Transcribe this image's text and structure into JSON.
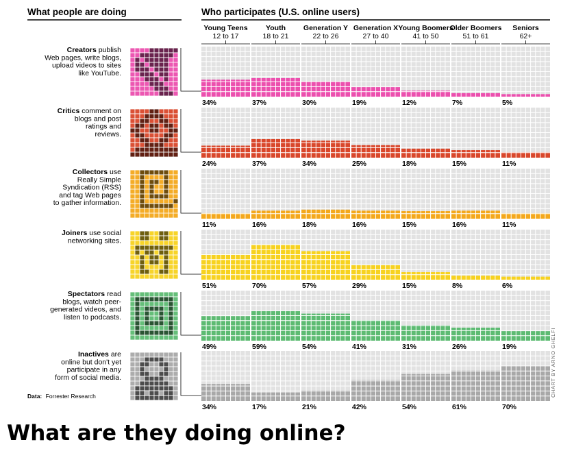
{
  "page_title": "What are they doing online?",
  "left_header": "What people are doing",
  "right_header": "Who participates (U.S. online users)",
  "source_label": "Data:",
  "source_text": "Forrester Research",
  "credit": "CHART BY ARNO GHELFI",
  "colors": {
    "creators": "#ec4fae",
    "critics": "#d9472b",
    "collectors": "#f4a81c",
    "joiners": "#f7d21f",
    "spectators": "#5dbb72",
    "inactives": "#a8a8a8",
    "empty_cell": "#e2e2e2",
    "grid_line": "#ffffff"
  },
  "chart_data": {
    "type": "bar",
    "unit": "%",
    "ylim": [
      0,
      100
    ],
    "categories": [
      {
        "name": "Young Teens",
        "ages": "12 to 17"
      },
      {
        "name": "Youth",
        "ages": "18 to 21"
      },
      {
        "name": "Generation Y",
        "ages": "22 to 26"
      },
      {
        "name": "Generation X",
        "ages": "27 to 40"
      },
      {
        "name": "Young Boomers",
        "ages": "41 to 50"
      },
      {
        "name": "Older Boomers",
        "ages": "51 to 61"
      },
      {
        "name": "Seniors",
        "ages": "62+"
      }
    ],
    "series": [
      {
        "key": "creators",
        "name": "Creators",
        "description_lines": [
          "publish",
          "Web pages, write blogs,",
          "upload videos to sites",
          "like YouTube."
        ],
        "values": [
          34,
          37,
          30,
          19,
          12,
          7,
          5
        ]
      },
      {
        "key": "critics",
        "name": "Critics",
        "description_lines": [
          "comment on",
          "blogs and post",
          "ratings and",
          "reviews."
        ],
        "values": [
          24,
          37,
          34,
          25,
          18,
          15,
          11
        ]
      },
      {
        "key": "collectors",
        "name": "Collectors",
        "description_lines": [
          "use",
          "Really Simple",
          "Syndication (RSS)",
          "and tag Web pages",
          "to gather information."
        ],
        "values": [
          11,
          16,
          18,
          16,
          15,
          16,
          11
        ]
      },
      {
        "key": "joiners",
        "name": "Joiners",
        "description_lines": [
          "use social",
          "networking sites."
        ],
        "values": [
          51,
          70,
          57,
          29,
          15,
          8,
          6
        ]
      },
      {
        "key": "spectators",
        "name": "Spectators",
        "description_lines": [
          "read",
          "blogs, watch peer-",
          "generated videos, and",
          "listen to podcasts."
        ],
        "values": [
          49,
          59,
          54,
          41,
          31,
          26,
          19
        ]
      },
      {
        "key": "inactives",
        "name": "Inactives",
        "description_lines": [
          "are",
          "online but don't yet",
          "participate in any",
          "form of social media."
        ],
        "values": [
          34,
          17,
          21,
          42,
          54,
          61,
          70
        ]
      }
    ]
  }
}
